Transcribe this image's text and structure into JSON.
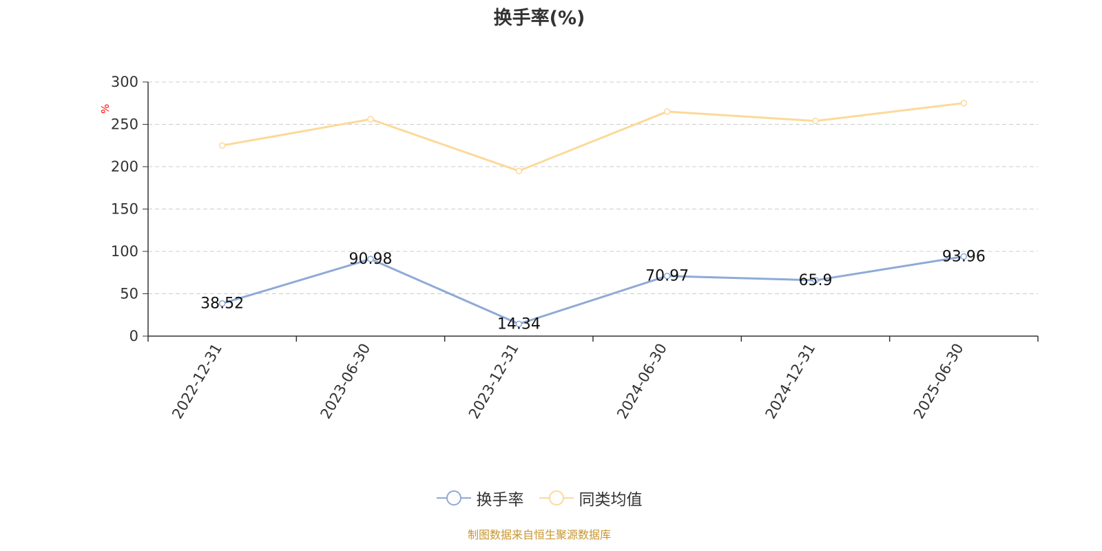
{
  "title": "换手率(%)",
  "source_note": "制图数据来自恒生聚源数据库",
  "colors": {
    "series1": "#8eaad6",
    "series2": "#fcd99a",
    "grid": "#cccccc",
    "axis": "#333333",
    "unit_label": "#ff0000",
    "source": "#c8962e"
  },
  "chart_data": {
    "type": "line",
    "title": "换手率(%)",
    "ylabel": "%",
    "xlabel": "",
    "ylim": [
      0,
      300
    ],
    "yticks": [
      0,
      50,
      100,
      150,
      200,
      250,
      300
    ],
    "grid": true,
    "legend_position": "bottom",
    "categories": [
      "2022-12-31",
      "2023-06-30",
      "2023-12-31",
      "2024-06-30",
      "2024-12-31",
      "2025-06-30"
    ],
    "series": [
      {
        "name": "换手率",
        "values": [
          38.52,
          90.98,
          14.34,
          70.97,
          65.9,
          93.96
        ],
        "data_labels": [
          "38.52",
          "90.98",
          "14.34",
          "70.97",
          "65.9",
          "93.96"
        ]
      },
      {
        "name": "同类均值",
        "values": [
          225,
          256,
          195,
          265,
          254,
          275
        ]
      }
    ]
  }
}
